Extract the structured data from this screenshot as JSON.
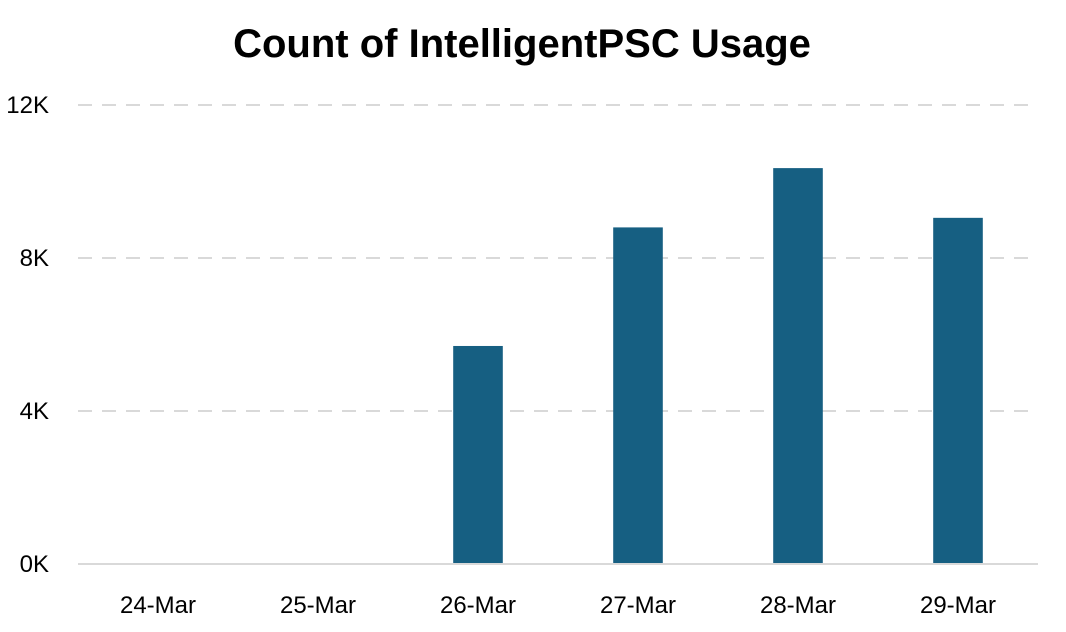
{
  "chart_data": {
    "type": "bar",
    "title": "Count of IntelligentPSC Usage",
    "xlabel": "",
    "ylabel": "",
    "categories": [
      "24-Mar",
      "25-Mar",
      "26-Mar",
      "27-Mar",
      "28-Mar",
      "29-Mar"
    ],
    "values": [
      0,
      0,
      5700,
      8800,
      10350,
      9050
    ],
    "ylim": [
      0,
      12000
    ],
    "yticks": [
      0,
      4000,
      8000,
      12000
    ],
    "ytick_labels": [
      "0K",
      "4K",
      "8K",
      "12K"
    ],
    "grid": true,
    "legend": "none",
    "bar_color": "#165f82",
    "grid_color": "#d9d9d9"
  }
}
